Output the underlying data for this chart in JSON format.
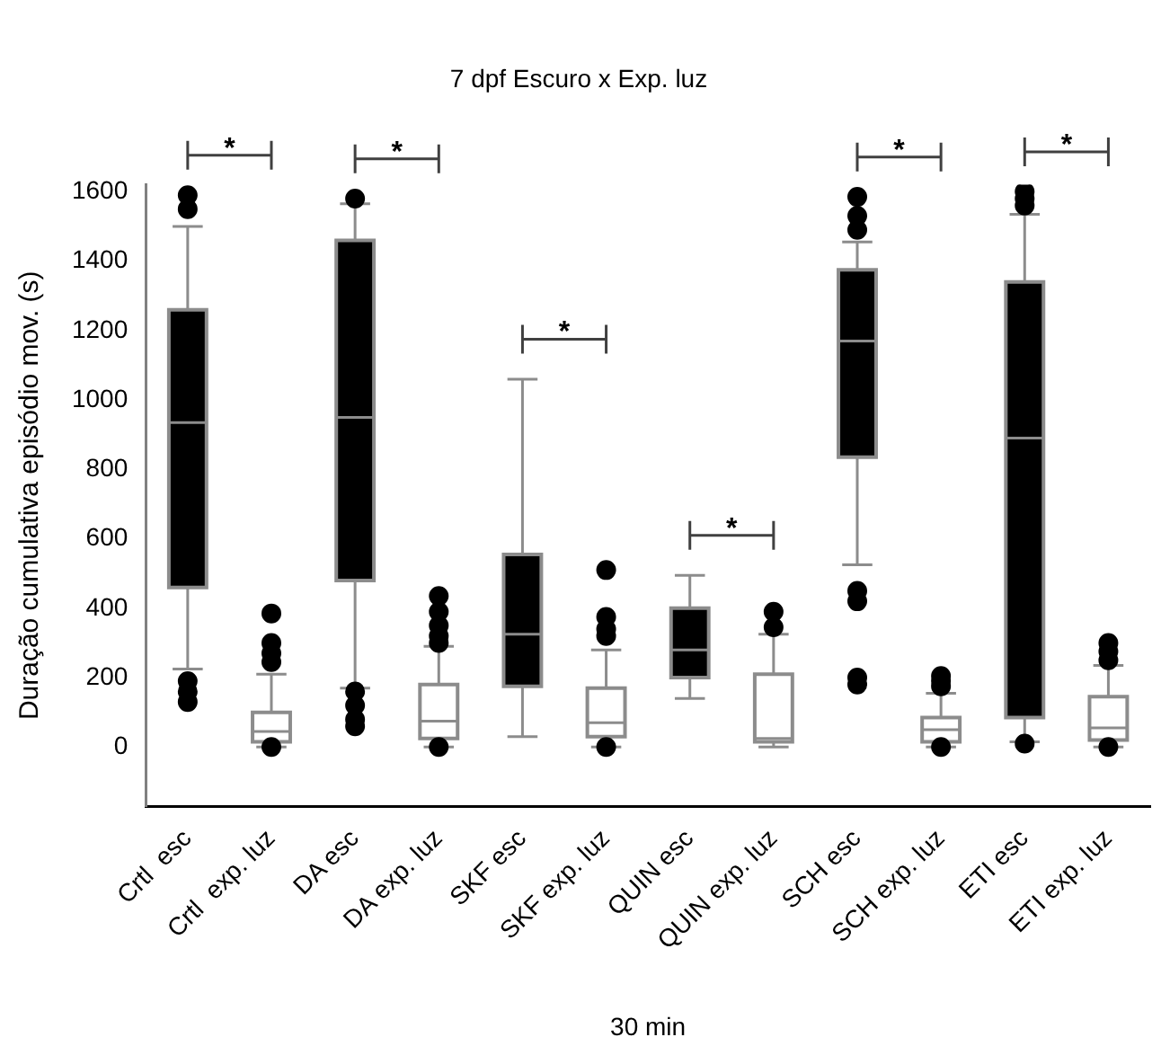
{
  "chart_data": {
    "type": "box",
    "title": "7 dpf Escuro x Exp. luz",
    "xlabel": "30 min",
    "ylabel": "Duração cumulativa episódio mov. (s)",
    "categories": [
      "Crtl  esc",
      "Crtl  exp. luz",
      "DA esc",
      "DA exp. luz",
      "SKF esc",
      "SKF exp. luz",
      "QUIN esc",
      "QUIN exp. luz",
      "SCH esc",
      "SCH exp. luz",
      "ETI esc",
      "ETI exp. luz"
    ],
    "colors": [
      "#000000",
      "#ffffff",
      "#000000",
      "#ffffff",
      "#000000",
      "#ffffff",
      "#000000",
      "#ffffff",
      "#000000",
      "#ffffff",
      "#000000",
      "#ffffff"
    ],
    "boxes": [
      {
        "low": 225,
        "q1": 460,
        "median": 935,
        "q3": 1260,
        "high": 1500,
        "outliers": [
          1590,
          1550,
          190,
          160,
          130
        ]
      },
      {
        "low": 0,
        "q1": 15,
        "median": 45,
        "q3": 100,
        "high": 210,
        "outliers": [
          385,
          300,
          270,
          245,
          0
        ]
      },
      {
        "low": 170,
        "q1": 480,
        "median": 950,
        "q3": 1460,
        "high": 1565,
        "outliers": [
          1580,
          160,
          120,
          80,
          60
        ]
      },
      {
        "low": 0,
        "q1": 25,
        "median": 75,
        "q3": 180,
        "high": 290,
        "outliers": [
          435,
          390,
          350,
          320,
          300,
          0
        ]
      },
      {
        "low": 30,
        "q1": 175,
        "median": 325,
        "q3": 555,
        "high": 1060
      },
      {
        "low": 0,
        "q1": 30,
        "median": 70,
        "q3": 170,
        "high": 280,
        "outliers": [
          510,
          375,
          340,
          320,
          0
        ]
      },
      {
        "low": 140,
        "q1": 200,
        "median": 280,
        "q3": 400,
        "high": 495
      },
      {
        "low": 0,
        "q1": 15,
        "median": 25,
        "q3": 210,
        "high": 325,
        "outliers": [
          390,
          345
        ]
      },
      {
        "low": 525,
        "q1": 835,
        "median": 1170,
        "q3": 1375,
        "high": 1455,
        "outliers": [
          1585,
          1530,
          1490,
          450,
          420,
          200,
          180
        ]
      },
      {
        "low": 0,
        "q1": 15,
        "median": 50,
        "q3": 85,
        "high": 155,
        "outliers": [
          205,
          190,
          175,
          0
        ]
      },
      {
        "low": 15,
        "q1": 85,
        "median": 890,
        "q3": 1340,
        "high": 1535,
        "outliers": [
          1600,
          1580,
          1560,
          10
        ]
      },
      {
        "low": 0,
        "q1": 20,
        "median": 55,
        "q3": 145,
        "high": 235,
        "outliers": [
          300,
          275,
          250,
          0
        ]
      }
    ],
    "ylim": [
      -170,
      1620
    ],
    "yticks": [
      0,
      200,
      400,
      600,
      800,
      1000,
      1200,
      1400,
      1600
    ],
    "grid": false,
    "legend": false,
    "marker": "circle",
    "annotations": [
      "*",
      "*",
      "*",
      "*",
      "*",
      "*"
    ]
  }
}
